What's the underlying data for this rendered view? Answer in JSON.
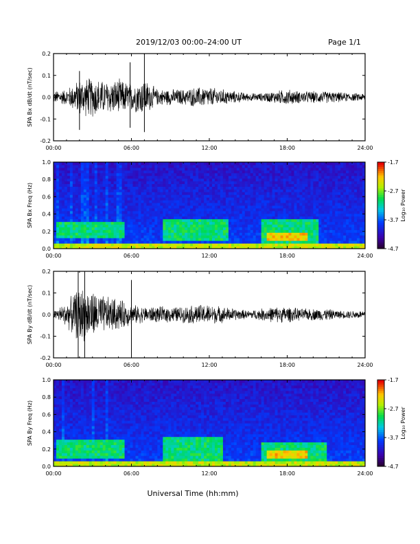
{
  "header": {
    "title": "2019/12/03  00:00–24:00 UT",
    "page": "Page 1/1"
  },
  "footer": {
    "xlabel": "Universal Time (hh:mm)"
  },
  "chart_data": [
    {
      "type": "line",
      "ylabel": "SPA Bx dB/dt (nT/sec)",
      "ylim": [
        -0.2,
        0.2
      ],
      "yticks": [
        -0.2,
        -0.1,
        0.0,
        0.1,
        0.2
      ],
      "yticklabels": [
        "-0.2",
        "-0.1",
        "0.0",
        "0.1",
        "0.2"
      ],
      "xlim": [
        0,
        24
      ],
      "xticks": [
        0,
        6,
        12,
        18,
        24
      ],
      "xticklabels": [
        "00:00",
        "06:00",
        "12:00",
        "18:00",
        "24:00"
      ],
      "envelope": {
        "hours": [
          0,
          1,
          2,
          3,
          4,
          5,
          6,
          7,
          8,
          9,
          10,
          11,
          12,
          13,
          14,
          15,
          16,
          17,
          18,
          19,
          20,
          21,
          22,
          23,
          24
        ],
        "amplitude": [
          0.03,
          0.04,
          0.09,
          0.1,
          0.08,
          0.09,
          0.07,
          0.09,
          0.04,
          0.04,
          0.04,
          0.05,
          0.05,
          0.04,
          0.03,
          0.02,
          0.02,
          0.03,
          0.04,
          0.03,
          0.03,
          0.03,
          0.025,
          0.02,
          0.02
        ]
      },
      "spikes": [
        {
          "hour": 7.0,
          "min": -0.16,
          "max": 0.2
        },
        {
          "hour": 2.0,
          "min": -0.15,
          "max": 0.12
        },
        {
          "hour": 5.9,
          "min": -0.14,
          "max": 0.16
        }
      ]
    },
    {
      "type": "heatmap",
      "ylabel": "SPA Bx Freq (Hz)",
      "ylim": [
        0,
        1.0
      ],
      "yticks": [
        0,
        0.2,
        0.4,
        0.6,
        0.8,
        1.0
      ],
      "yticklabels": [
        "0.0",
        "0.2",
        "0.4",
        "0.6",
        "0.8",
        "1.0"
      ],
      "xlim": [
        0,
        24
      ],
      "xticks": [
        0,
        6,
        12,
        18,
        24
      ],
      "xticklabels": [
        "00:00",
        "06:00",
        "12:00",
        "18:00",
        "24:00"
      ],
      "colorbar": {
        "label": "Log₁₀ Power",
        "range": [
          -4.7,
          -1.7
        ],
        "ticks": [
          "-1.7",
          "-2.7",
          "-3.7",
          "-4.7"
        ]
      },
      "features": [
        {
          "t0": 0,
          "t1": 24,
          "f0": 0.0,
          "f1": 0.05,
          "level": 0.75
        },
        {
          "t0": 0.3,
          "t1": 5.5,
          "f0": 0.12,
          "f1": 0.3,
          "level": 0.55
        },
        {
          "t0": 8.5,
          "t1": 13.5,
          "f0": 0.1,
          "f1": 0.35,
          "level": 0.55
        },
        {
          "t0": 16.0,
          "t1": 20.5,
          "f0": 0.05,
          "f1": 0.35,
          "level": 0.55
        },
        {
          "t0": 16.5,
          "t1": 19.5,
          "f0": 0.1,
          "f1": 0.2,
          "level": 0.82
        }
      ]
    },
    {
      "type": "line",
      "ylabel": "SPA By dB/dt (nT/sec)",
      "ylim": [
        -0.2,
        0.2
      ],
      "yticks": [
        -0.2,
        -0.1,
        0.0,
        0.1,
        0.2
      ],
      "yticklabels": [
        "-0.2",
        "-0.1",
        "0.0",
        "0.1",
        "0.2"
      ],
      "xlim": [
        0,
        24
      ],
      "xticks": [
        0,
        6,
        12,
        18,
        24
      ],
      "xticklabels": [
        "00:00",
        "06:00",
        "12:00",
        "18:00",
        "24:00"
      ],
      "envelope": {
        "hours": [
          0,
          1,
          2,
          3,
          4,
          5,
          6,
          7,
          8,
          9,
          10,
          11,
          12,
          13,
          14,
          15,
          16,
          17,
          18,
          19,
          20,
          21,
          22,
          23,
          24
        ],
        "amplitude": [
          0.02,
          0.06,
          0.14,
          0.12,
          0.09,
          0.08,
          0.05,
          0.04,
          0.04,
          0.04,
          0.04,
          0.05,
          0.05,
          0.04,
          0.03,
          0.02,
          0.03,
          0.04,
          0.04,
          0.03,
          0.03,
          0.03,
          0.02,
          0.02,
          0.02
        ]
      },
      "spikes": [
        {
          "hour": 1.9,
          "min": -0.2,
          "max": 0.2
        },
        {
          "hour": 2.4,
          "min": -0.2,
          "max": 0.2
        },
        {
          "hour": 6.0,
          "min": -0.2,
          "max": 0.16
        }
      ]
    },
    {
      "type": "heatmap",
      "ylabel": "SPA By Freq (Hz)",
      "ylim": [
        0,
        1.0
      ],
      "yticks": [
        0,
        0.2,
        0.4,
        0.6,
        0.8,
        1.0
      ],
      "yticklabels": [
        "0.0",
        "0.2",
        "0.4",
        "0.6",
        "0.8",
        "1.0"
      ],
      "xlim": [
        0,
        24
      ],
      "xticks": [
        0,
        6,
        12,
        18,
        24
      ],
      "xticklabels": [
        "00:00",
        "06:00",
        "12:00",
        "18:00",
        "24:00"
      ],
      "colorbar": {
        "label": "Log₁₀ Power",
        "range": [
          -4.7,
          -1.7
        ],
        "ticks": [
          "-1.7",
          "-2.7",
          "-3.7",
          "-4.7"
        ]
      },
      "features": [
        {
          "t0": 0,
          "t1": 24,
          "f0": 0.0,
          "f1": 0.05,
          "level": 0.75
        },
        {
          "t0": 0.3,
          "t1": 5.5,
          "f0": 0.1,
          "f1": 0.3,
          "level": 0.55
        },
        {
          "t0": 8.5,
          "t1": 13.0,
          "f0": 0.05,
          "f1": 0.35,
          "level": 0.55
        },
        {
          "t0": 16.0,
          "t1": 21.0,
          "f0": 0.05,
          "f1": 0.28,
          "level": 0.55
        },
        {
          "t0": 16.5,
          "t1": 19.5,
          "f0": 0.1,
          "f1": 0.18,
          "level": 0.82
        }
      ]
    }
  ]
}
